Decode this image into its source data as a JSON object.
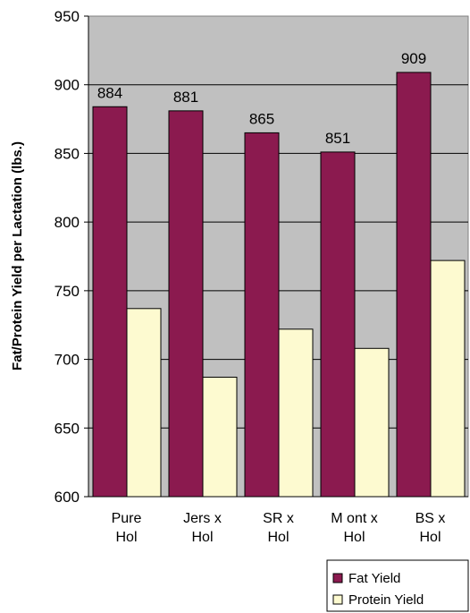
{
  "chart_data": {
    "type": "bar",
    "ylabel": "Fat/Protein Yield per Lactation (lbs.)",
    "ylim": [
      600,
      950
    ],
    "yticks": [
      600,
      650,
      700,
      750,
      800,
      850,
      900,
      950
    ],
    "grid": true,
    "legend_position": "bottom-right",
    "categories": [
      [
        "Pure",
        "Hol"
      ],
      [
        "Jers x",
        "Hol"
      ],
      [
        "SR x",
        "Hol"
      ],
      [
        "M ont x",
        "Hol"
      ],
      [
        "BS x",
        "Hol"
      ]
    ],
    "series": [
      {
        "name": "Fat Yield",
        "color": "#8b1a4f",
        "values": [
          884,
          881,
          865,
          851,
          909
        ],
        "data_labels": [
          "884",
          "881",
          "865",
          "851",
          "909"
        ]
      },
      {
        "name": "Protein Yield",
        "color": "#fdfad0",
        "values": [
          737,
          687,
          722,
          708,
          772
        ]
      }
    ],
    "plot_background": "#c0c0c0"
  }
}
